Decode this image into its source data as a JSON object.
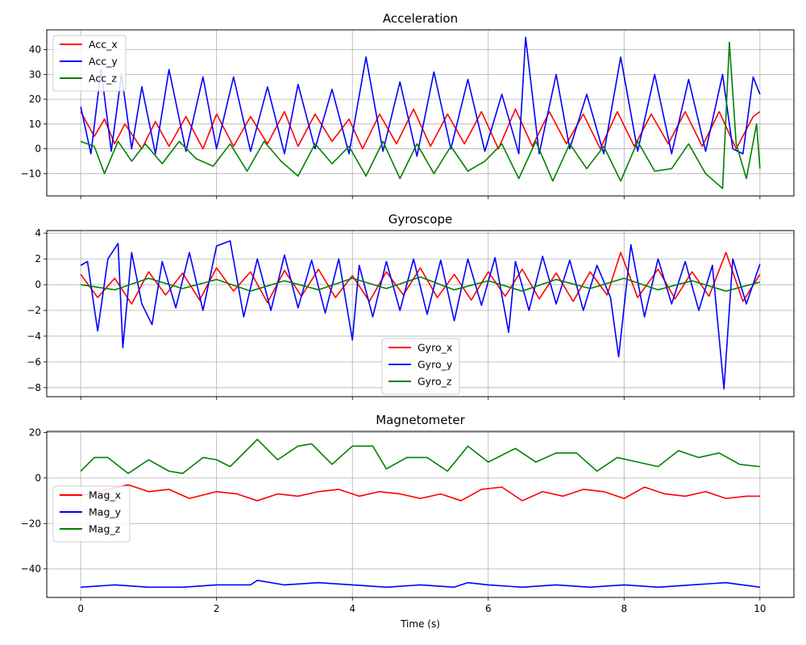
{
  "chart_data": [
    {
      "type": "line",
      "title": "Acceleration",
      "xlabel": "",
      "ylabel": "",
      "xlim": [
        -0.5,
        10.5
      ],
      "ylim": [
        -19,
        48
      ],
      "xticks": [
        0,
        2,
        4,
        6,
        8,
        10
      ],
      "yticks": [
        -10,
        0,
        10,
        20,
        30,
        40
      ],
      "show_xtick_labels": false,
      "grid": true,
      "legend_position": "upper-left",
      "series": [
        {
          "name": "Acc_x",
          "color": "#ff0000",
          "x": [
            0,
            0.2,
            0.35,
            0.5,
            0.65,
            0.9,
            1.1,
            1.3,
            1.55,
            1.8,
            2.0,
            2.25,
            2.5,
            2.75,
            3.0,
            3.2,
            3.45,
            3.7,
            3.95,
            4.15,
            4.4,
            4.65,
            4.9,
            5.15,
            5.4,
            5.65,
            5.9,
            6.15,
            6.4,
            6.65,
            6.9,
            7.15,
            7.4,
            7.65,
            7.9,
            8.15,
            8.4,
            8.65,
            8.9,
            9.15,
            9.4,
            9.65,
            9.9,
            10
          ],
          "y": [
            15,
            5,
            12,
            2,
            10,
            0,
            11,
            1,
            13,
            0,
            14,
            1,
            13,
            2,
            15,
            1,
            14,
            3,
            12,
            0,
            14,
            2,
            16,
            1,
            14,
            2,
            15,
            0,
            16,
            1,
            15,
            2,
            14,
            0,
            15,
            1,
            14,
            2,
            15,
            1,
            15,
            0,
            13,
            15
          ]
        },
        {
          "name": "Acc_y",
          "color": "#0000ff",
          "x": [
            0,
            0.15,
            0.3,
            0.45,
            0.6,
            0.75,
            0.9,
            1.1,
            1.3,
            1.55,
            1.8,
            2.0,
            2.25,
            2.5,
            2.75,
            3.0,
            3.2,
            3.45,
            3.7,
            3.95,
            4.2,
            4.45,
            4.7,
            4.95,
            5.2,
            5.45,
            5.7,
            5.95,
            6.2,
            6.45,
            6.55,
            6.75,
            7.0,
            7.2,
            7.45,
            7.7,
            7.95,
            8.2,
            8.45,
            8.7,
            8.95,
            9.2,
            9.45,
            9.6,
            9.75,
            9.9,
            10
          ],
          "y": [
            17,
            -2,
            32,
            -1,
            30,
            0,
            25,
            -2,
            32,
            -1,
            29,
            0,
            29,
            -1,
            25,
            -2,
            26,
            0,
            24,
            -2,
            37,
            -1,
            27,
            -3,
            31,
            0,
            28,
            -1,
            22,
            -2,
            45,
            -2,
            30,
            0,
            22,
            -2,
            37,
            -1,
            30,
            -2,
            28,
            -1,
            30,
            0,
            -2,
            29,
            22
          ]
        },
        {
          "name": "Acc_z",
          "color": "#008000",
          "x": [
            0,
            0.2,
            0.35,
            0.55,
            0.75,
            0.95,
            1.2,
            1.45,
            1.7,
            1.95,
            2.2,
            2.45,
            2.7,
            2.95,
            3.2,
            3.45,
            3.7,
            3.95,
            4.2,
            4.45,
            4.7,
            4.95,
            5.2,
            5.45,
            5.7,
            5.95,
            6.2,
            6.45,
            6.7,
            6.95,
            7.2,
            7.45,
            7.7,
            7.95,
            8.2,
            8.45,
            8.7,
            8.95,
            9.2,
            9.45,
            9.55,
            9.65,
            9.8,
            9.95,
            10
          ],
          "y": [
            3,
            1,
            -10,
            3,
            -5,
            2,
            -6,
            3,
            -4,
            -7,
            2,
            -9,
            3,
            -5,
            -11,
            2,
            -6,
            1,
            -11,
            3,
            -12,
            2,
            -10,
            1,
            -9,
            -5,
            2,
            -12,
            3,
            -13,
            2,
            -8,
            1,
            -13,
            3,
            -9,
            -8,
            2,
            -10,
            -16,
            43,
            2,
            -12,
            10,
            -8
          ]
        }
      ]
    },
    {
      "type": "line",
      "title": "Gyroscope",
      "xlabel": "",
      "ylabel": "",
      "xlim": [
        -0.5,
        10.5
      ],
      "ylim": [
        -8.7,
        4.2
      ],
      "xticks": [
        0,
        2,
        4,
        6,
        8,
        10
      ],
      "yticks": [
        -8,
        -6,
        -4,
        -2,
        0,
        2,
        4
      ],
      "show_xtick_labels": false,
      "grid": true,
      "legend_position": "lower-center",
      "series": [
        {
          "name": "Gyro_x",
          "color": "#ff0000",
          "x": [
            0,
            0.25,
            0.5,
            0.75,
            1.0,
            1.25,
            1.5,
            1.75,
            2.0,
            2.25,
            2.5,
            2.75,
            3.0,
            3.25,
            3.5,
            3.75,
            4.0,
            4.25,
            4.5,
            4.75,
            5.0,
            5.25,
            5.5,
            5.75,
            6.0,
            6.25,
            6.5,
            6.75,
            7.0,
            7.25,
            7.5,
            7.75,
            7.95,
            8.2,
            8.5,
            8.75,
            9.0,
            9.25,
            9.5,
            9.75,
            10
          ],
          "y": [
            0.8,
            -1.0,
            0.5,
            -1.5,
            1.0,
            -0.8,
            0.9,
            -1.2,
            1.3,
            -0.5,
            1.0,
            -1.4,
            1.1,
            -0.9,
            1.2,
            -1.0,
            0.7,
            -1.3,
            1.0,
            -0.8,
            1.3,
            -1.0,
            0.8,
            -1.2,
            1.0,
            -0.9,
            1.2,
            -1.1,
            0.9,
            -1.3,
            1.0,
            -0.8,
            2.5,
            -1.0,
            1.2,
            -1.1,
            1.0,
            -0.9,
            2.5,
            -1.3,
            0.8
          ]
        },
        {
          "name": "Gyro_y",
          "color": "#0000ff",
          "x": [
            0,
            0.1,
            0.25,
            0.4,
            0.55,
            0.62,
            0.75,
            0.9,
            1.05,
            1.2,
            1.4,
            1.6,
            1.8,
            2.0,
            2.2,
            2.4,
            2.6,
            2.8,
            3.0,
            3.2,
            3.4,
            3.6,
            3.8,
            4.0,
            4.1,
            4.3,
            4.5,
            4.7,
            4.9,
            5.1,
            5.3,
            5.5,
            5.7,
            5.9,
            6.1,
            6.3,
            6.4,
            6.6,
            6.8,
            7.0,
            7.2,
            7.4,
            7.6,
            7.8,
            7.92,
            8.1,
            8.3,
            8.5,
            8.7,
            8.9,
            9.1,
            9.3,
            9.47,
            9.6,
            9.8,
            10
          ],
          "y": [
            1.5,
            1.8,
            -3.6,
            2.0,
            3.2,
            -4.9,
            2.5,
            -1.5,
            -3.1,
            1.8,
            -1.8,
            2.5,
            -2.0,
            3.0,
            3.4,
            -2.5,
            2.0,
            -2.0,
            2.3,
            -1.8,
            1.9,
            -2.2,
            2.0,
            -4.3,
            1.5,
            -2.5,
            1.8,
            -2.0,
            2.0,
            -2.3,
            1.9,
            -2.8,
            2.0,
            -1.6,
            2.1,
            -3.7,
            1.8,
            -2.0,
            2.2,
            -1.5,
            1.9,
            -2.0,
            1.5,
            -1.0,
            -5.6,
            3.1,
            -2.5,
            2.0,
            -1.5,
            1.8,
            -2.0,
            1.5,
            -8.1,
            2.0,
            -1.5,
            1.6
          ]
        },
        {
          "name": "Gyro_z",
          "color": "#008000",
          "x": [
            0,
            0.5,
            1.0,
            1.5,
            2.0,
            2.5,
            3.0,
            3.5,
            4.0,
            4.5,
            5.0,
            5.5,
            6.0,
            6.5,
            7.0,
            7.5,
            8.0,
            8.5,
            9.0,
            9.5,
            10
          ],
          "y": [
            0.0,
            -0.4,
            0.5,
            -0.3,
            0.4,
            -0.5,
            0.3,
            -0.4,
            0.5,
            -0.3,
            0.6,
            -0.4,
            0.3,
            -0.5,
            0.4,
            -0.3,
            0.5,
            -0.4,
            0.3,
            -0.5,
            0.2
          ]
        }
      ]
    },
    {
      "type": "line",
      "title": "Magnetometer",
      "xlabel": "Time (s)",
      "ylabel": "",
      "xlim": [
        -0.5,
        10.5
      ],
      "ylim": [
        -52.5,
        20.5
      ],
      "xticks": [
        0,
        2,
        4,
        6,
        8,
        10
      ],
      "yticks": [
        -40,
        -20,
        0,
        20
      ],
      "show_xtick_labels": true,
      "grid": true,
      "legend_position": "center-left",
      "series": [
        {
          "name": "Mag_x",
          "color": "#ff0000",
          "x": [
            0,
            0.4,
            0.7,
            1.0,
            1.3,
            1.6,
            2.0,
            2.3,
            2.6,
            2.9,
            3.2,
            3.5,
            3.8,
            4.1,
            4.4,
            4.7,
            5.0,
            5.3,
            5.6,
            5.9,
            6.2,
            6.5,
            6.8,
            7.1,
            7.4,
            7.7,
            8.0,
            8.3,
            8.6,
            8.9,
            9.2,
            9.5,
            9.8,
            10
          ],
          "y": [
            -8,
            -5,
            -3,
            -6,
            -5,
            -9,
            -6,
            -7,
            -10,
            -7,
            -8,
            -6,
            -5,
            -8,
            -6,
            -7,
            -9,
            -7,
            -10,
            -5,
            -4,
            -10,
            -6,
            -8,
            -5,
            -6,
            -9,
            -4,
            -7,
            -8,
            -6,
            -9,
            -8,
            -8
          ]
        },
        {
          "name": "Mag_y",
          "color": "#0000ff",
          "x": [
            0,
            0.5,
            1.0,
            1.5,
            2.0,
            2.5,
            2.6,
            3.0,
            3.5,
            4.0,
            4.5,
            5.0,
            5.5,
            5.7,
            6.0,
            6.5,
            7.0,
            7.5,
            8.0,
            8.5,
            9.0,
            9.5,
            10
          ],
          "y": [
            -48,
            -47,
            -48,
            -48,
            -47,
            -47,
            -45,
            -47,
            -46,
            -47,
            -48,
            -47,
            -48,
            -46,
            -47,
            -48,
            -47,
            -48,
            -47,
            -48,
            -47,
            -46,
            -48
          ]
        },
        {
          "name": "Mag_z",
          "color": "#008000",
          "x": [
            0,
            0.2,
            0.4,
            0.7,
            1.0,
            1.3,
            1.5,
            1.8,
            2.0,
            2.2,
            2.6,
            2.9,
            3.2,
            3.4,
            3.7,
            4.0,
            4.3,
            4.5,
            4.8,
            5.1,
            5.4,
            5.7,
            6.0,
            6.4,
            6.7,
            7.0,
            7.3,
            7.6,
            7.9,
            8.2,
            8.5,
            8.8,
            9.1,
            9.4,
            9.7,
            10
          ],
          "y": [
            3,
            9,
            9,
            2,
            8,
            3,
            2,
            9,
            8,
            5,
            17,
            8,
            14,
            15,
            6,
            14,
            14,
            4,
            9,
            9,
            3,
            14,
            7,
            13,
            7,
            11,
            11,
            3,
            9,
            7,
            5,
            12,
            9,
            11,
            6,
            5
          ]
        }
      ]
    }
  ]
}
